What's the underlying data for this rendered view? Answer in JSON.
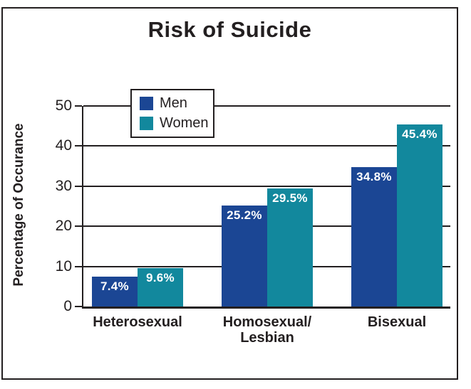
{
  "colors": {
    "ink": "#231f20",
    "background": "#ffffff",
    "men_blue": "#1b4694",
    "women_teal": "#12889d",
    "bar_label_text": "#ffffff"
  },
  "chart_data": {
    "type": "bar",
    "title": "Risk of Suicide",
    "xlabel": "",
    "ylabel": "Percentage of Occurance",
    "categories": [
      "Heterosexual",
      "Homosexual/\nLesbian",
      "Bisexual"
    ],
    "series": [
      {
        "name": "Men",
        "color": "#1b4694",
        "values": [
          7.4,
          25.2,
          34.8
        ],
        "value_labels": [
          "7.4%",
          "25.2%",
          "34.8%"
        ]
      },
      {
        "name": "Women",
        "color": "#12889d",
        "values": [
          9.6,
          29.5,
          45.4
        ],
        "value_labels": [
          "9.6%",
          "29.5%",
          "45.4%"
        ]
      }
    ],
    "ylim": [
      0,
      50
    ],
    "yticks": [
      0,
      10,
      20,
      30,
      40,
      50
    ],
    "grid": "horizontal",
    "legend_position": "top-left-inside",
    "value_label_format": "{value}%"
  }
}
